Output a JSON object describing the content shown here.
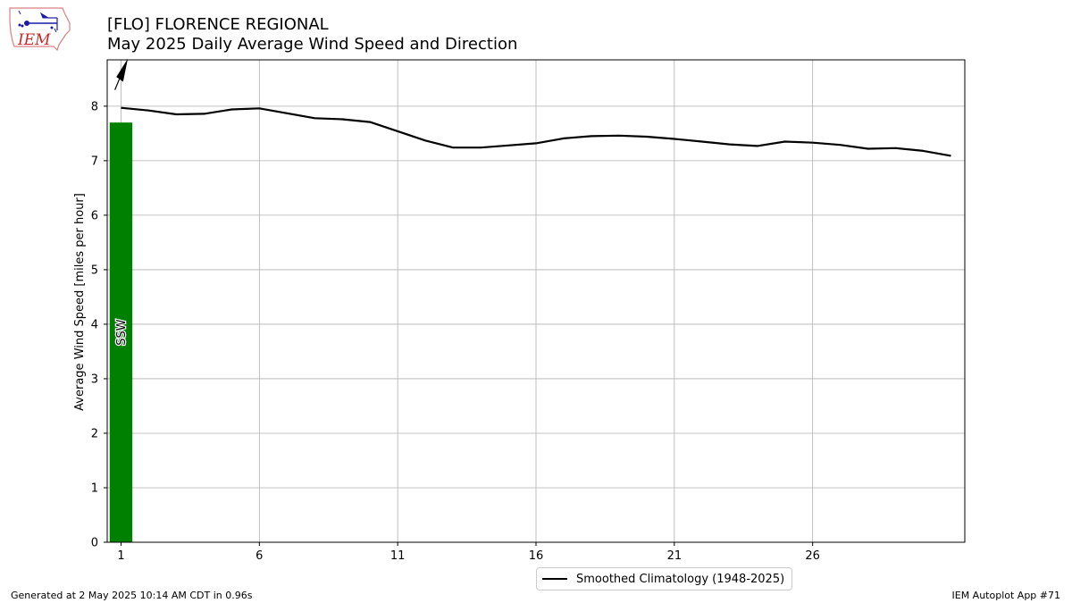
{
  "logo": {
    "text": "IEM",
    "color": "#c62828",
    "symbol_color": "#1a1aa6"
  },
  "header": {
    "title": "[FLO] FLORENCE REGIONAL",
    "subtitle": "May 2025 Daily Average Wind Speed and Direction"
  },
  "chart_data": {
    "type": "bar",
    "ylabel": "Average Wind Speed [miles per hour]",
    "xlabel": "",
    "xlim": [
      0.5,
      31.5
    ],
    "ylim": [
      0,
      8.85
    ],
    "xticks": [
      1,
      6,
      11,
      16,
      21,
      26
    ],
    "yticks": [
      0,
      1,
      2,
      3,
      4,
      5,
      6,
      7,
      8
    ],
    "grid": true,
    "bar_color": "#008000",
    "bars": [
      {
        "day": 1,
        "value": 7.7,
        "direction": "SSW"
      }
    ],
    "direction_arrows": [
      {
        "day": 1,
        "direction": "SSW"
      }
    ],
    "climatology": {
      "name": "Smoothed Climatology (1948-2025)",
      "color": "#000000",
      "x": [
        1,
        2,
        3,
        4,
        5,
        6,
        7,
        8,
        9,
        10,
        11,
        12,
        13,
        14,
        15,
        16,
        17,
        18,
        19,
        20,
        21,
        22,
        23,
        24,
        25,
        26,
        27,
        28,
        29,
        30,
        31
      ],
      "y": [
        7.97,
        7.92,
        7.85,
        7.86,
        7.94,
        7.96,
        7.87,
        7.78,
        7.76,
        7.71,
        7.54,
        7.37,
        7.24,
        7.24,
        7.28,
        7.32,
        7.41,
        7.45,
        7.46,
        7.44,
        7.4,
        7.35,
        7.3,
        7.27,
        7.35,
        7.33,
        7.29,
        7.22,
        7.23,
        7.18,
        7.09
      ]
    },
    "legend_position": "below-center"
  },
  "footer": {
    "generated": "Generated at 2 May 2025 10:14 AM CDT in 0.96s",
    "app": "IEM Autoplot App #71"
  }
}
